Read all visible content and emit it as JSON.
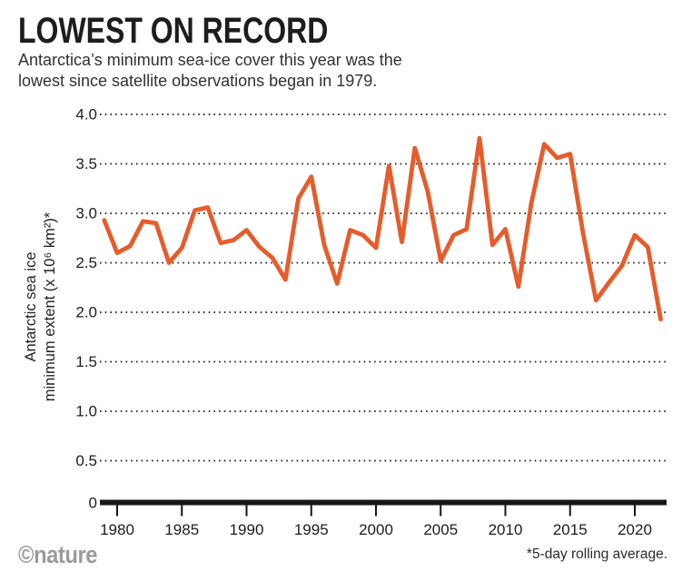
{
  "header": {
    "title": "LOWEST ON RECORD",
    "subtitle_line1": "Antarctica’s minimum sea-ice cover this year was the",
    "subtitle_line2": "lowest since satellite observations began in 1979."
  },
  "footer": {
    "credit": "©nature",
    "footnote": "*5-day rolling average."
  },
  "colors": {
    "line": "#E65C2B",
    "axis": "#161616",
    "grid_dots": "#1a1a1a",
    "tick_text": "#1c1c1c",
    "title_text": "#1d1d1b",
    "credit_gray": "#9b9b9b"
  },
  "chart_data": {
    "type": "line",
    "title": "LOWEST ON RECORD",
    "ylabel_line1": "Antarctic sea ice",
    "ylabel_line2": "minimum extent (x 10⁶ km²)*",
    "xlabel": "",
    "ylim": [
      0,
      4.0
    ],
    "xlim": [
      1979,
      2022
    ],
    "grid": "horizontal dotted",
    "legend": "none",
    "series_name": "Antarctic sea-ice minimum extent (x 10^6 km^2, 5-day rolling average)",
    "x": [
      1979,
      1980,
      1981,
      1982,
      1983,
      1984,
      1985,
      1986,
      1987,
      1988,
      1989,
      1990,
      1991,
      1992,
      1993,
      1994,
      1995,
      1996,
      1997,
      1998,
      1999,
      2000,
      2001,
      2002,
      2003,
      2004,
      2005,
      2006,
      2007,
      2008,
      2009,
      2010,
      2011,
      2012,
      2013,
      2014,
      2015,
      2016,
      2017,
      2018,
      2019,
      2020,
      2021,
      2022
    ],
    "values": [
      2.93,
      2.6,
      2.67,
      2.92,
      2.9,
      2.5,
      2.65,
      3.03,
      3.06,
      2.7,
      2.73,
      2.83,
      2.66,
      2.55,
      2.33,
      3.15,
      3.37,
      2.68,
      2.29,
      2.83,
      2.78,
      2.65,
      3.48,
      2.71,
      3.66,
      3.22,
      2.52,
      2.78,
      2.84,
      3.76,
      2.68,
      2.84,
      2.26,
      3.1,
      3.7,
      3.56,
      3.6,
      2.8,
      2.12,
      2.3,
      2.47,
      2.78,
      2.66,
      1.93
    ],
    "y_ticks": [
      {
        "value": 4.0,
        "label": "4.0"
      },
      {
        "value": 3.5,
        "label": "3.5"
      },
      {
        "value": 3.0,
        "label": "3.0"
      },
      {
        "value": 2.5,
        "label": "2.5"
      },
      {
        "value": 2.0,
        "label": "2.0"
      },
      {
        "value": 1.5,
        "label": "1.5"
      },
      {
        "value": 1.0,
        "label": "1.0"
      },
      {
        "value": 0.5,
        "label": "0.5"
      },
      {
        "value": 0,
        "label": "0"
      }
    ],
    "x_ticks": [
      {
        "value": 1980,
        "label": "1980"
      },
      {
        "value": 1985,
        "label": "1985"
      },
      {
        "value": 1990,
        "label": "1990"
      },
      {
        "value": 1995,
        "label": "1995"
      },
      {
        "value": 2000,
        "label": "2000"
      },
      {
        "value": 2005,
        "label": "2005"
      },
      {
        "value": 2010,
        "label": "2010"
      },
      {
        "value": 2015,
        "label": "2015"
      },
      {
        "value": 2020,
        "label": "2020"
      }
    ]
  }
}
